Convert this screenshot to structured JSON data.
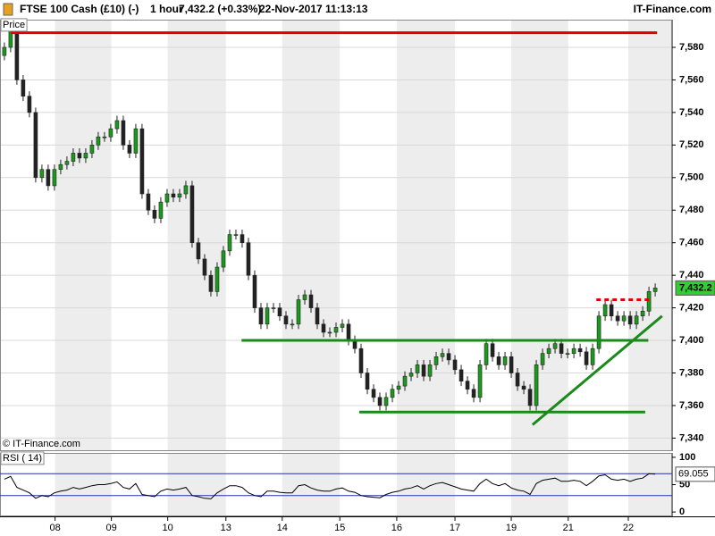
{
  "header": {
    "instrument": "FTSE 100 Cash (£10) (-)",
    "interval": "1 hour",
    "quote": "7,432.2 (+0.33%)",
    "timestamp": "22-Nov-2017 11:13:13",
    "brand": "IT-Finance.com"
  },
  "chart_data": [
    {
      "type": "candlestick",
      "panel_label": "Price",
      "watermark": "© IT-Finance.com",
      "up_color": "#1a9a1a",
      "down_color": "#222222",
      "open": [
        7575,
        7580,
        7590,
        7560,
        7550,
        7540,
        7500,
        7505,
        7495,
        7505,
        7508,
        7510,
        7515,
        7512,
        7515,
        7520,
        7525,
        7525,
        7530,
        7535,
        7520,
        7515,
        7530,
        7490,
        7480,
        7475,
        7485,
        7490,
        7488,
        7490,
        7495,
        7460,
        7450,
        7440,
        7430,
        7445,
        7455,
        7465,
        7465,
        7460,
        7440,
        7420,
        7410,
        7420,
        7420,
        7415,
        7410,
        7410,
        7425,
        7428,
        7420,
        7410,
        7405,
        7405,
        7408,
        7410,
        7400,
        7395,
        7380,
        7370,
        7365,
        7360,
        7365,
        7370,
        7372,
        7378,
        7380,
        7385,
        7378,
        7385,
        7390,
        7392,
        7388,
        7382,
        7375,
        7370,
        7365,
        7385,
        7398,
        7390,
        7385,
        7390,
        7380,
        7372,
        7370,
        7360,
        7385,
        7392,
        7395,
        7398,
        7392,
        7392,
        7395,
        7393,
        7385,
        7395,
        7415,
        7422,
        7415,
        7412,
        7415,
        7410,
        7415,
        7418,
        7430
      ],
      "high": [
        7583,
        7593,
        7593,
        7563,
        7553,
        7543,
        7508,
        7508,
        7508,
        7511,
        7513,
        7518,
        7518,
        7518,
        7523,
        7528,
        7528,
        7533,
        7538,
        7538,
        7523,
        7533,
        7533,
        7493,
        7483,
        7488,
        7493,
        7493,
        7493,
        7498,
        7498,
        7463,
        7453,
        7443,
        7448,
        7458,
        7468,
        7468,
        7468,
        7463,
        7443,
        7423,
        7423,
        7423,
        7423,
        7418,
        7413,
        7428,
        7431,
        7431,
        7423,
        7413,
        7408,
        7411,
        7413,
        7413,
        7403,
        7398,
        7383,
        7373,
        7368,
        7368,
        7373,
        7375,
        7381,
        7383,
        7388,
        7388,
        7388,
        7393,
        7395,
        7395,
        7391,
        7385,
        7378,
        7373,
        7388,
        7401,
        7401,
        7393,
        7393,
        7393,
        7383,
        7375,
        7373,
        7388,
        7395,
        7398,
        7401,
        7401,
        7395,
        7398,
        7398,
        7396,
        7398,
        7418,
        7425,
        7425,
        7418,
        7418,
        7418,
        7418,
        7421,
        7433,
        7435
      ],
      "low": [
        7572,
        7577,
        7557,
        7547,
        7537,
        7497,
        7497,
        7492,
        7492,
        7502,
        7505,
        7507,
        7509,
        7509,
        7512,
        7517,
        7522,
        7522,
        7527,
        7517,
        7512,
        7512,
        7487,
        7477,
        7472,
        7472,
        7482,
        7485,
        7485,
        7487,
        7457,
        7447,
        7437,
        7427,
        7427,
        7442,
        7452,
        7462,
        7457,
        7437,
        7417,
        7407,
        7407,
        7417,
        7412,
        7407,
        7407,
        7407,
        7422,
        7417,
        7407,
        7402,
        7402,
        7402,
        7405,
        7397,
        7392,
        7377,
        7367,
        7362,
        7357,
        7357,
        7362,
        7367,
        7369,
        7375,
        7377,
        7375,
        7375,
        7382,
        7387,
        7385,
        7379,
        7372,
        7367,
        7362,
        7362,
        7382,
        7387,
        7382,
        7382,
        7377,
        7369,
        7367,
        7357,
        7357,
        7382,
        7389,
        7392,
        7389,
        7389,
        7389,
        7390,
        7382,
        7382,
        7392,
        7412,
        7412,
        7409,
        7409,
        7407,
        7407,
        7412,
        7415,
        7427
      ],
      "close": [
        7580,
        7590,
        7560,
        7550,
        7540,
        7500,
        7505,
        7495,
        7505,
        7508,
        7510,
        7515,
        7512,
        7515,
        7520,
        7525,
        7525,
        7530,
        7535,
        7520,
        7515,
        7530,
        7490,
        7480,
        7475,
        7485,
        7490,
        7488,
        7490,
        7495,
        7460,
        7450,
        7440,
        7430,
        7445,
        7455,
        7465,
        7465,
        7460,
        7440,
        7420,
        7410,
        7420,
        7420,
        7415,
        7410,
        7410,
        7425,
        7428,
        7420,
        7410,
        7405,
        7405,
        7408,
        7410,
        7400,
        7395,
        7380,
        7370,
        7365,
        7360,
        7365,
        7370,
        7372,
        7378,
        7380,
        7385,
        7378,
        7385,
        7390,
        7392,
        7388,
        7382,
        7375,
        7370,
        7365,
        7385,
        7398,
        7390,
        7385,
        7390,
        7380,
        7372,
        7370,
        7360,
        7385,
        7392,
        7395,
        7398,
        7392,
        7392,
        7395,
        7393,
        7385,
        7395,
        7415,
        7422,
        7415,
        7412,
        7415,
        7410,
        7415,
        7418,
        7430,
        7432.2
      ],
      "last_label": "7,432.2",
      "last_color": "#33cc33",
      "xlim": [
        -0.7,
        106.7
      ],
      "ylim": [
        7332,
        7597
      ],
      "yticks": [
        {
          "value": 7340,
          "label": "7,340"
        },
        {
          "value": 7360,
          "label": "7,360"
        },
        {
          "value": 7380,
          "label": "7,380"
        },
        {
          "value": 7400,
          "label": "7,400"
        },
        {
          "value": 7420,
          "label": "7,420"
        },
        {
          "value": 7440,
          "label": "7,440"
        },
        {
          "value": 7460,
          "label": "7,460"
        },
        {
          "value": 7480,
          "label": "7,480"
        },
        {
          "value": 7500,
          "label": "7,500"
        },
        {
          "value": 7520,
          "label": "7,520"
        },
        {
          "value": 7540,
          "label": "7,540"
        },
        {
          "value": 7560,
          "label": "7,560"
        },
        {
          "value": 7580,
          "label": "7,580"
        }
      ],
      "grid": true,
      "drawings": [
        {
          "color": "#e00000",
          "dash": false,
          "x": [
            1,
            104.3
          ],
          "y": [
            7589,
            7589
          ]
        },
        {
          "color": "#1a8a1a",
          "dash": false,
          "x": [
            37.9,
            102.9
          ],
          "y": [
            7400,
            7400
          ]
        },
        {
          "color": "#1a8a1a",
          "dash": false,
          "x": [
            56.7,
            102.4
          ],
          "y": [
            7356,
            7356
          ]
        },
        {
          "color": "#1a8a1a",
          "dash": false,
          "x": [
            84.4,
            105.1
          ],
          "y": [
            7348.2,
            7415
          ]
        },
        {
          "color": "#e00000",
          "dash": true,
          "x": [
            94.6,
            103.6
          ],
          "y": [
            7425,
            7425
          ]
        }
      ]
    },
    {
      "type": "line",
      "panel_label": "RSI ( 14)",
      "color": "#000000",
      "values": [
        60,
        65,
        45,
        40,
        35,
        25,
        30,
        28,
        35,
        38,
        40,
        45,
        42,
        45,
        48,
        50,
        50,
        52,
        55,
        45,
        42,
        52,
        32,
        30,
        28,
        38,
        42,
        40,
        42,
        45,
        30,
        28,
        25,
        24,
        35,
        42,
        48,
        48,
        45,
        35,
        30,
        28,
        38,
        38,
        36,
        35,
        35,
        48,
        50,
        44,
        40,
        38,
        38,
        42,
        44,
        38,
        36,
        30,
        28,
        27,
        26,
        32,
        36,
        38,
        42,
        44,
        48,
        42,
        48,
        52,
        54,
        50,
        46,
        42,
        40,
        38,
        52,
        60,
        52,
        48,
        52,
        44,
        40,
        38,
        32,
        52,
        58,
        60,
        62,
        56,
        56,
        58,
        56,
        48,
        56,
        66,
        68,
        60,
        58,
        60,
        56,
        60,
        62,
        70,
        69.055
      ],
      "last_label": "69.055",
      "levels": [
        70,
        30
      ],
      "level_color": "#2233aa",
      "xlim": [
        -0.7,
        106.7
      ],
      "xticks": [
        {
          "value": 8.1,
          "label": "08"
        },
        {
          "value": 17.1,
          "label": "09"
        },
        {
          "value": 26.1,
          "label": "10"
        },
        {
          "value": 35.4,
          "label": "13"
        },
        {
          "value": 44.4,
          "label": "14"
        },
        {
          "value": 53.6,
          "label": "15"
        },
        {
          "value": 62.7,
          "label": "16"
        },
        {
          "value": 72,
          "label": "17"
        },
        {
          "value": 81,
          "label": "19"
        },
        {
          "value": 90.1,
          "label": "21"
        },
        {
          "value": 99.7,
          "label": "22"
        }
      ],
      "ylim": [
        -8,
        108
      ],
      "yticks": [
        0,
        50,
        100
      ]
    }
  ]
}
